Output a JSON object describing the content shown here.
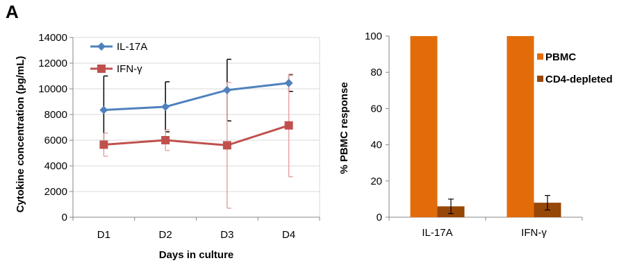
{
  "panel_label": "A",
  "chart_data": [
    {
      "type": "line",
      "title": "",
      "xlabel": "Days in culture",
      "ylabel": "Cytokine concentration (pg/mL)",
      "categories": [
        "D1",
        "D2",
        "D3",
        "D4"
      ],
      "ylim": [
        0,
        14000
      ],
      "yticks": [
        0,
        2000,
        4000,
        6000,
        8000,
        10000,
        12000,
        14000
      ],
      "grid": true,
      "legend_position": "top-left",
      "series": [
        {
          "name": "IL-17A",
          "color": "#4f81bd",
          "errorbar_color": "#000000",
          "marker": "diamond",
          "values": [
            8350,
            8600,
            9900,
            10450
          ],
          "error": [
            2650,
            1950,
            2400,
            650
          ]
        },
        {
          "name": "IFN-γ",
          "color": "#c0504d",
          "errorbar_color": "#e6a3a3",
          "marker": "square",
          "values": [
            5650,
            6000,
            5600,
            7150
          ],
          "error": [
            900,
            800,
            4900,
            4000
          ]
        }
      ]
    },
    {
      "type": "bar",
      "title": "",
      "xlabel": "",
      "ylabel": "% PBMC response",
      "categories": [
        "IL-17A",
        "IFN-γ"
      ],
      "ylim": [
        0,
        100
      ],
      "yticks": [
        0,
        20,
        40,
        60,
        80,
        100
      ],
      "grid": false,
      "legend_position": "right",
      "series": [
        {
          "name": "PBMC",
          "color": "#e36c0a",
          "values": [
            100,
            100
          ],
          "error": [
            0,
            0
          ]
        },
        {
          "name": "CD4-depleted",
          "color": "#974706",
          "values": [
            6,
            8
          ],
          "error": [
            4,
            4
          ]
        }
      ]
    }
  ]
}
